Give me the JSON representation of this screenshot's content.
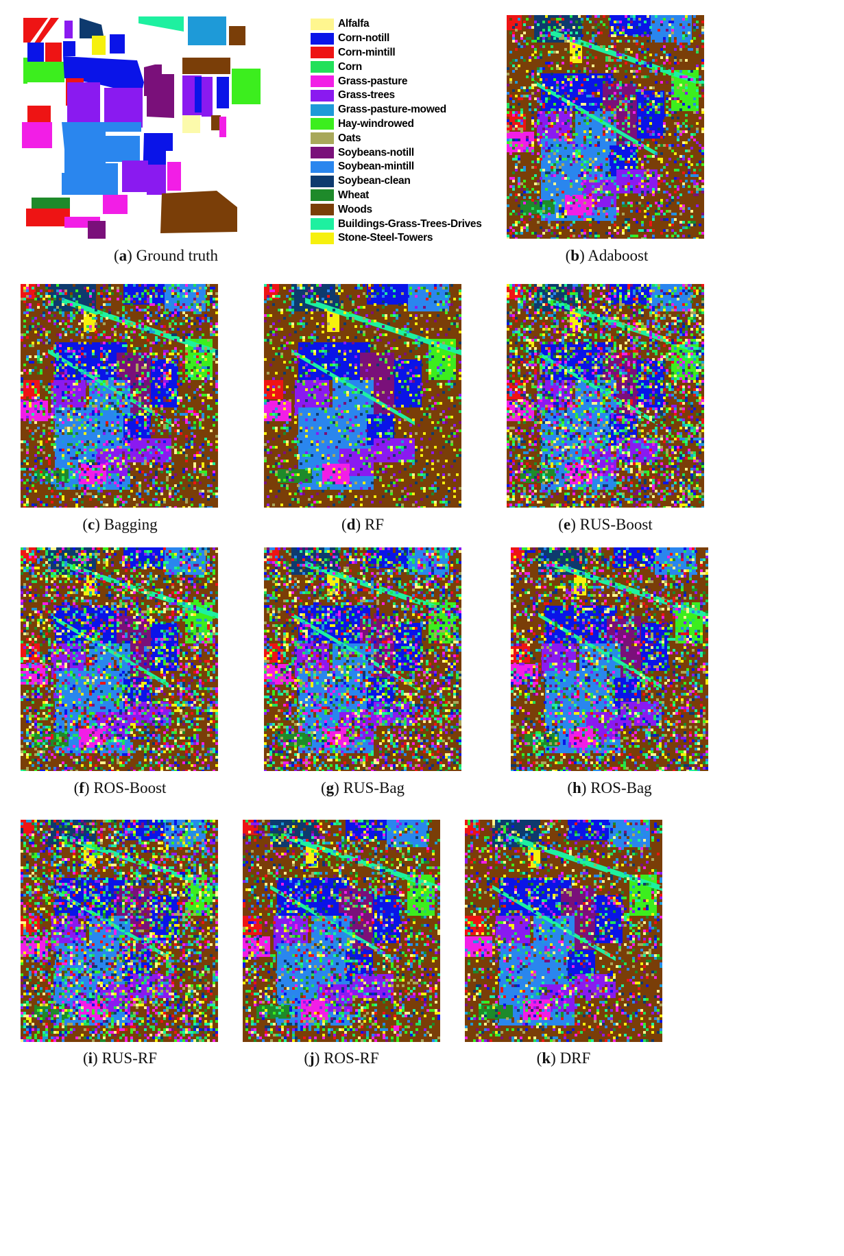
{
  "legend": [
    {
      "label": "Alfalfa",
      "color": "#fff68f"
    },
    {
      "label": "Corn-notill",
      "color": "#0a14e8"
    },
    {
      "label": "Corn-mintill",
      "color": "#ee1414"
    },
    {
      "label": "Corn",
      "color": "#22e05a"
    },
    {
      "label": "Grass-pasture",
      "color": "#f21ee6"
    },
    {
      "label": "Grass-trees",
      "color": "#8a1af0"
    },
    {
      "label": "Grass-pasture-mowed",
      "color": "#1e9ad8"
    },
    {
      "label": "Hay-windrowed",
      "color": "#3cee1e"
    },
    {
      "label": "Oats",
      "color": "#a8a85a"
    },
    {
      "label": "Soybeans-notill",
      "color": "#7a107a"
    },
    {
      "label": "Soybean-mintill",
      "color": "#2a86ee"
    },
    {
      "label": "Soybean-clean",
      "color": "#0e3a6e"
    },
    {
      "label": "Wheat",
      "color": "#1e8a2a"
    },
    {
      "label": "Woods",
      "color": "#7a3e08"
    },
    {
      "label": "Buildings-Grass-Trees-Drives",
      "color": "#1ef0a0"
    },
    {
      "label": "Stone-Steel-Towers",
      "color": "#f6f00e"
    }
  ],
  "panels": [
    {
      "letter": "a",
      "name": "Ground truth"
    },
    {
      "letter": "b",
      "name": "Adaboost"
    },
    {
      "letter": "c",
      "name": "Bagging"
    },
    {
      "letter": "d",
      "name": "RF"
    },
    {
      "letter": "e",
      "name": "RUS-Boost"
    },
    {
      "letter": "f",
      "name": "ROS-Boost"
    },
    {
      "letter": "g",
      "name": "RUS-Bag"
    },
    {
      "letter": "h",
      "name": "ROS-Bag"
    },
    {
      "letter": "i",
      "name": "RUS-RF"
    },
    {
      "letter": "j",
      "name": "ROS-RF"
    },
    {
      "letter": "k",
      "name": "DRF"
    }
  ]
}
